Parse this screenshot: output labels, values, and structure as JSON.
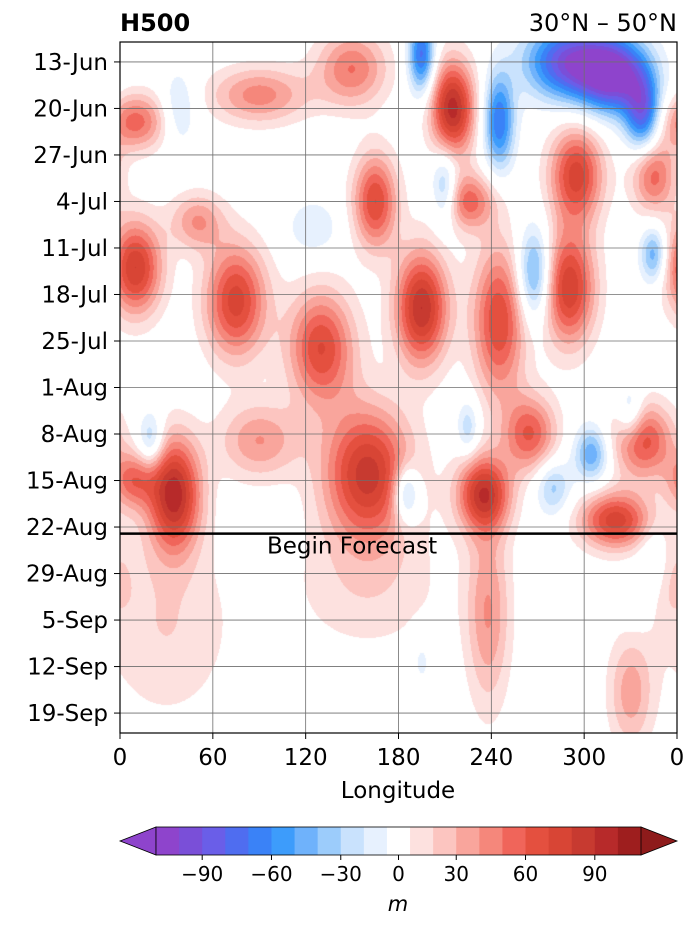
{
  "chart_data": {
    "type": "heatmap",
    "title": "H500",
    "subtitle": "30°N – 50°N",
    "xlabel": "Longitude",
    "ylabel": "",
    "x_ticks": [
      "0",
      "60",
      "120",
      "180",
      "240",
      "300",
      "0"
    ],
    "x_tick_values": [
      0,
      60,
      120,
      180,
      240,
      300,
      360
    ],
    "xlim": [
      0,
      360
    ],
    "y_ticks": [
      "13-Jun",
      "20-Jun",
      "27-Jun",
      "4-Jul",
      "11-Jul",
      "18-Jul",
      "25-Jul",
      "1-Aug",
      "8-Aug",
      "15-Aug",
      "22-Aug",
      "29-Aug",
      "5-Sep",
      "12-Sep",
      "19-Sep"
    ],
    "y_tick_days": [
      3,
      10,
      17,
      24,
      31,
      38,
      45,
      52,
      59,
      66,
      73,
      80,
      87,
      94,
      101
    ],
    "ylim_days": [
      0,
      104
    ],
    "y_inverted": true,
    "grid": true,
    "forecast_line_day": 74,
    "annotation": "Begin Forecast",
    "colorbar": {
      "label": "m",
      "ticks": [
        "−90",
        "−60",
        "−30",
        "0",
        "30",
        "60",
        "90"
      ],
      "tick_values": [
        -90,
        -60,
        -30,
        0,
        30,
        60,
        90
      ],
      "range": [
        -110,
        110
      ],
      "levels": [
        -110,
        -100,
        -90,
        -80,
        -70,
        -60,
        -50,
        -40,
        -30,
        -20,
        -10,
        10,
        20,
        30,
        40,
        50,
        60,
        70,
        80,
        90,
        100,
        110
      ],
      "colors": [
        "#8e44cc",
        "#7a4fd8",
        "#6a5ee8",
        "#4f6df0",
        "#3a82f7",
        "#3d9cfb",
        "#6fb2fb",
        "#9cccfb",
        "#c9e2fd",
        "#e7f1fe",
        "#ffffff",
        "#fde1df",
        "#fcc5c0",
        "#f9a59c",
        "#f5877b",
        "#f0655a",
        "#e4503f",
        "#d84535",
        "#c73a30",
        "#b72a2a",
        "#9e1e1e"
      ],
      "extend_low_color": "#8e44cc",
      "extend_high_color": "#8e1b1b"
    },
    "field_features": [
      {
        "lon": 10,
        "day": 12,
        "value": 55,
        "slon": 14,
        "sday": 3
      },
      {
        "lon": 10,
        "day": 34,
        "value": 80,
        "slon": 12,
        "sday": 5
      },
      {
        "lon": 8,
        "day": 66,
        "value": 50,
        "slon": 10,
        "sday": 3
      },
      {
        "lon": 35,
        "day": 68,
        "value": 95,
        "slon": 12,
        "sday": 6
      },
      {
        "lon": 50,
        "day": 27,
        "value": 40,
        "slon": 12,
        "sday": 3
      },
      {
        "lon": 75,
        "day": 39,
        "value": 75,
        "slon": 14,
        "sday": 6
      },
      {
        "lon": 90,
        "day": 8,
        "value": 45,
        "slon": 22,
        "sday": 3
      },
      {
        "lon": 90,
        "day": 60,
        "value": 40,
        "slon": 18,
        "sday": 4
      },
      {
        "lon": 130,
        "day": 46,
        "value": 70,
        "slon": 15,
        "sday": 6
      },
      {
        "lon": 150,
        "day": 4,
        "value": 50,
        "slon": 16,
        "sday": 4
      },
      {
        "lon": 160,
        "day": 65,
        "value": 85,
        "slon": 20,
        "sday": 7
      },
      {
        "lon": 165,
        "day": 24,
        "value": 70,
        "slon": 10,
        "sday": 5
      },
      {
        "lon": 195,
        "day": 40,
        "value": 90,
        "slon": 12,
        "sday": 6
      },
      {
        "lon": 215,
        "day": 10,
        "value": 95,
        "slon": 10,
        "sday": 5
      },
      {
        "lon": 225,
        "day": 24,
        "value": 55,
        "slon": 12,
        "sday": 3
      },
      {
        "lon": 235,
        "day": 68,
        "value": 85,
        "slon": 12,
        "sday": 4
      },
      {
        "lon": 245,
        "day": 42,
        "value": 70,
        "slon": 12,
        "sday": 8
      },
      {
        "lon": 265,
        "day": 59,
        "value": 60,
        "slon": 12,
        "sday": 4
      },
      {
        "lon": 290,
        "day": 37,
        "value": 80,
        "slon": 12,
        "sday": 6
      },
      {
        "lon": 295,
        "day": 20,
        "value": 75,
        "slon": 12,
        "sday": 5
      },
      {
        "lon": 320,
        "day": 72,
        "value": 75,
        "slon": 16,
        "sday": 3
      },
      {
        "lon": 338,
        "day": 60,
        "value": 65,
        "slon": 14,
        "sday": 4
      },
      {
        "lon": 345,
        "day": 20,
        "value": 55,
        "slon": 10,
        "sday": 4
      },
      {
        "lon": 38,
        "day": 10,
        "value": -25,
        "slon": 8,
        "sday": 4
      },
      {
        "lon": 20,
        "day": 60,
        "value": -40,
        "slon": 6,
        "sday": 3
      },
      {
        "lon": 125,
        "day": 28,
        "value": -20,
        "slon": 12,
        "sday": 3
      },
      {
        "lon": 195,
        "day": 2,
        "value": -75,
        "slon": 6,
        "sday": 4
      },
      {
        "lon": 185,
        "day": 68,
        "value": -55,
        "slon": 6,
        "sday": 3
      },
      {
        "lon": 225,
        "day": 58,
        "value": -30,
        "slon": 5,
        "sday": 3
      },
      {
        "lon": 245,
        "day": 12,
        "value": -70,
        "slon": 7,
        "sday": 5
      },
      {
        "lon": 210,
        "day": 22,
        "value": -45,
        "slon": 6,
        "sday": 4
      },
      {
        "lon": 290,
        "day": 3,
        "value": -90,
        "slon": 20,
        "sday": 4
      },
      {
        "lon": 320,
        "day": 5,
        "value": -100,
        "slon": 16,
        "sday": 4
      },
      {
        "lon": 338,
        "day": 11,
        "value": -75,
        "slon": 8,
        "sday": 4
      },
      {
        "lon": 268,
        "day": 35,
        "value": -60,
        "slon": 8,
        "sday": 5
      },
      {
        "lon": 345,
        "day": 32,
        "value": -50,
        "slon": 6,
        "sday": 3
      },
      {
        "lon": 305,
        "day": 62,
        "value": -50,
        "slon": 8,
        "sday": 3
      },
      {
        "lon": 280,
        "day": 67,
        "value": -35,
        "slon": 8,
        "sday": 3
      },
      {
        "lon": 345,
        "day": 78,
        "value": -30,
        "slon": 7,
        "sday": 4
      },
      {
        "lon": 330,
        "day": 56,
        "value": -35,
        "slon": 6,
        "sday": 3
      },
      {
        "lon": 30,
        "day": 88,
        "value": 20,
        "slon": 30,
        "sday": 10
      },
      {
        "lon": 160,
        "day": 82,
        "value": 18,
        "slon": 35,
        "sday": 7
      },
      {
        "lon": 238,
        "day": 86,
        "value": 40,
        "slon": 10,
        "sday": 10
      },
      {
        "lon": 330,
        "day": 98,
        "value": 35,
        "slon": 10,
        "sday": 6
      },
      {
        "lon": 350,
        "day": 80,
        "value": 22,
        "slon": 12,
        "sday": 5
      },
      {
        "lon": 195,
        "day": 93,
        "value": -15,
        "slon": 5,
        "sday": 3
      },
      {
        "lon": 335,
        "day": 83,
        "value": -15,
        "slon": 8,
        "sday": 4
      }
    ]
  }
}
